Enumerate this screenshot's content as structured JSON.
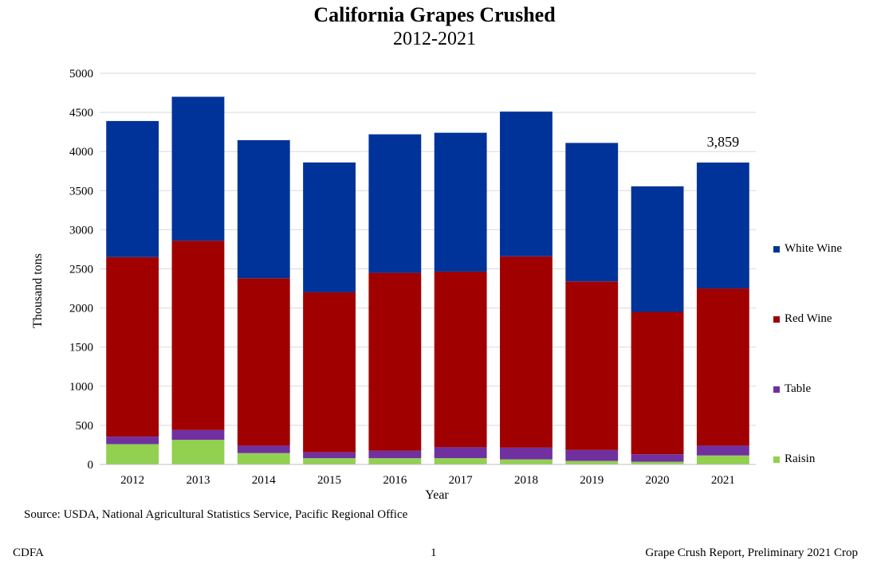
{
  "chart_data": {
    "type": "bar",
    "stacked": true,
    "title": "California Grapes Crushed",
    "subtitle": "2012-2021",
    "xlabel": "Year",
    "ylabel": "Thousand  tons",
    "ylim": [
      0,
      5000
    ],
    "yticks": [
      0,
      500,
      1000,
      1500,
      2000,
      2500,
      3000,
      3500,
      4000,
      4500,
      5000
    ],
    "grid": true,
    "legend_position": "right",
    "categories": [
      "2012",
      "2013",
      "2014",
      "2015",
      "2016",
      "2017",
      "2018",
      "2019",
      "2020",
      "2021"
    ],
    "series": [
      {
        "name": "Raisin",
        "color": "#92D050",
        "values": [
          260,
          315,
          145,
          80,
          80,
          80,
          65,
          45,
          35,
          115
        ]
      },
      {
        "name": "Table",
        "color": "#7030A0",
        "values": [
          95,
          125,
          95,
          75,
          95,
          140,
          150,
          140,
          95,
          125
        ]
      },
      {
        "name": "Red Wine",
        "color": "#A00000",
        "values": [
          2295,
          2420,
          2140,
          2045,
          2275,
          2245,
          2445,
          2155,
          1820,
          2010
        ]
      },
      {
        "name": "White Wine",
        "color": "#003399",
        "values": [
          1740,
          1840,
          1765,
          1660,
          1770,
          1775,
          1850,
          1770,
          1605,
          1609
        ]
      }
    ],
    "annotations": [
      {
        "category": "2021",
        "text": "3,859"
      }
    ]
  },
  "source": "Source: USDA, National Agricultural Statistics Service, Pacific Regional Office",
  "footer": {
    "left": "CDFA",
    "center": "1",
    "right": "Grape Crush Report, Preliminary 2021 Crop"
  }
}
